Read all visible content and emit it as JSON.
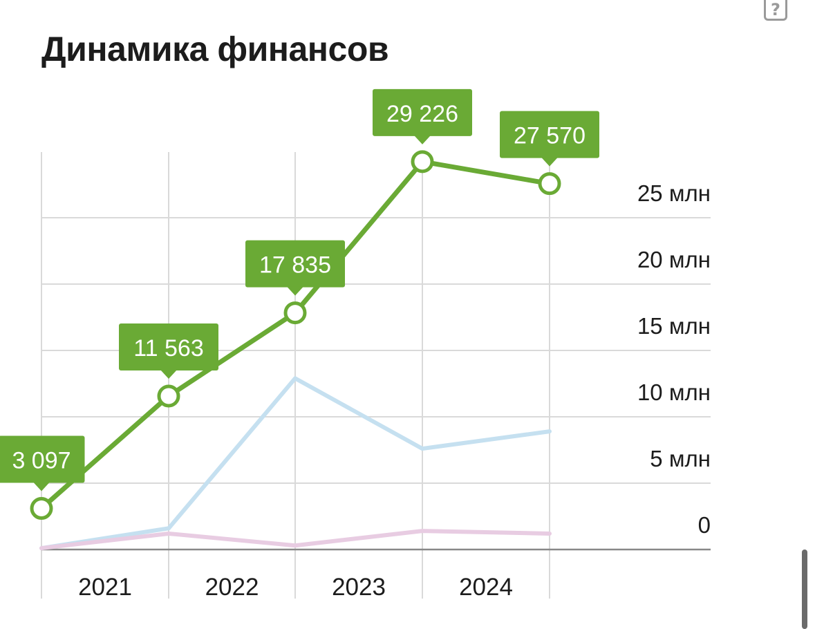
{
  "title": "Динамика финансов",
  "help_icon": "question-icon",
  "chart_data": {
    "type": "line",
    "title": "Динамика финансов",
    "x": [
      "",
      "2021",
      "2022",
      "2023",
      "2024"
    ],
    "x_tick_labels": [
      "2021",
      "2022",
      "2023",
      "2024"
    ],
    "y_tick_labels": [
      "0",
      "5 млн",
      "10 млн",
      "15 млн",
      "20 млн",
      "25 млн"
    ],
    "ylim": [
      0,
      30
    ],
    "ylabel": "",
    "xlabel": "",
    "grid": true,
    "series": [
      {
        "color": "#6aaa35",
        "values": [
          3.097,
          11.563,
          17.835,
          29.226,
          27.57
        ],
        "labels": [
          "3 097",
          "11 563",
          "17 835",
          "29 226",
          "27 570"
        ],
        "markers": true
      },
      {
        "color": "#c5e0f0",
        "values": [
          0.1,
          1.6,
          12.9,
          7.6,
          8.9
        ]
      },
      {
        "color": "#e8cce2",
        "values": [
          0.1,
          1.2,
          0.3,
          1.4,
          1.2
        ]
      }
    ]
  }
}
